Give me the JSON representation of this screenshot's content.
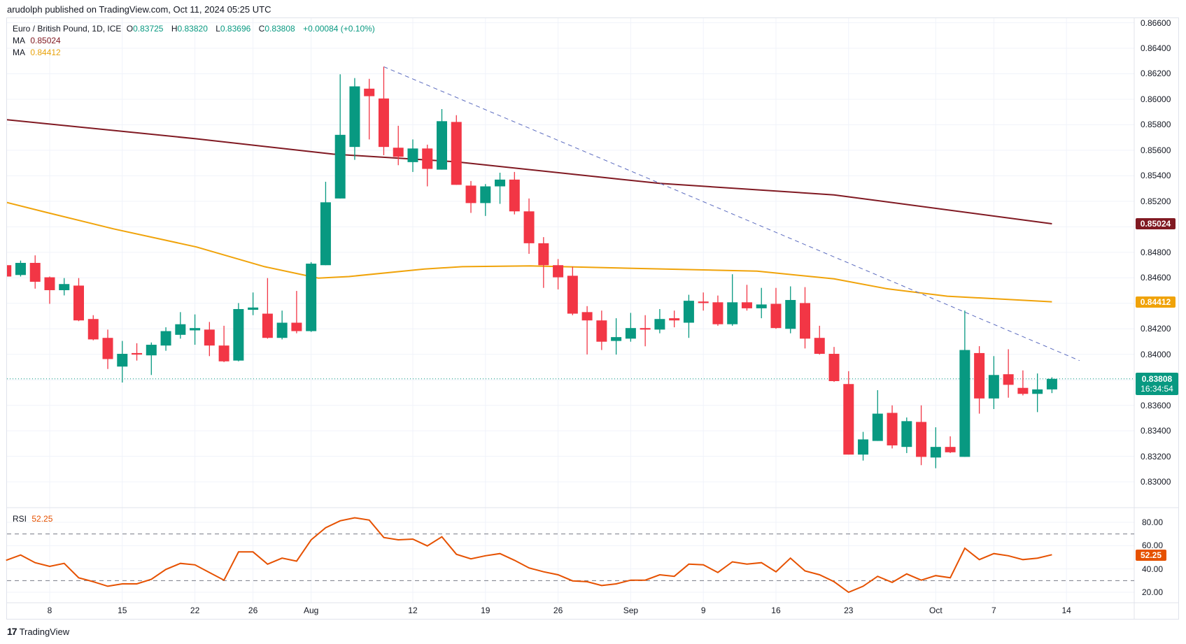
{
  "header": {
    "published": "arudolph published on TradingView.com, Oct 11, 2024 05:25 UTC"
  },
  "legend": {
    "symbol": "Euro / British Pound, 1D, ICE",
    "o_label": "O",
    "o": "0.83725",
    "h_label": "H",
    "h": "0.83820",
    "l_label": "L",
    "l": "0.83696",
    "c_label": "C",
    "c": "0.83808",
    "change": "+0.00084 (+0.10%)",
    "ma1_label": "MA",
    "ma1_value": "0.85024",
    "ma2_label": "MA",
    "ma2_value": "0.84412",
    "rsi_label": "RSI",
    "rsi_value": "52.25"
  },
  "tags": {
    "ma1": "0.85024",
    "ma2": "0.84412",
    "last_price": "0.83808",
    "countdown": "16:34:54",
    "rsi": "52.25"
  },
  "footer": {
    "brand": "TradingView",
    "logo": "17"
  },
  "colors": {
    "up": "#089981",
    "down": "#f23645",
    "ma1": "#801922",
    "ma2": "#f0a30a",
    "rsi": "#e65100",
    "trendline": "#5b6bbf"
  },
  "chart_data": {
    "type": "candlestick",
    "title": "Euro / British Pound, 1D, ICE",
    "price_ylim": [
      0.8286,
      0.8668
    ],
    "price_ticks": [
      "0.86600",
      "0.86400",
      "0.86200",
      "0.86000",
      "0.85800",
      "0.85600",
      "0.85400",
      "0.85200",
      "0.85000",
      "0.84800",
      "0.84600",
      "0.84400",
      "0.84200",
      "0.84000",
      "0.83800",
      "0.83600",
      "0.83400",
      "0.83200",
      "0.83000"
    ],
    "shown_price_ticks": [
      "0.86600",
      "0.86400",
      "0.86200",
      "0.86000",
      "0.85800",
      "0.85600",
      "0.85400",
      "0.85200",
      "0.84800",
      "0.84600",
      "0.84200",
      "0.84000",
      "0.83600",
      "0.83400",
      "0.83200",
      "0.83000"
    ],
    "rsi_ticks": [
      "80.00",
      "60.00",
      "40.00",
      "20.00"
    ],
    "rsi_levels": [
      70,
      30
    ],
    "x_labels": [
      {
        "label": "8",
        "index": 3
      },
      {
        "label": "15",
        "index": 8
      },
      {
        "label": "22",
        "index": 13
      },
      {
        "label": "26",
        "index": 17
      },
      {
        "label": "Aug",
        "index": 21
      },
      {
        "label": "12",
        "index": 28
      },
      {
        "label": "19",
        "index": 33
      },
      {
        "label": "26",
        "index": 38
      },
      {
        "label": "Sep",
        "index": 43
      },
      {
        "label": "9",
        "index": 48
      },
      {
        "label": "16",
        "index": 53
      },
      {
        "label": "23",
        "index": 58
      },
      {
        "label": "Oct",
        "index": 64
      },
      {
        "label": "7",
        "index": 68
      },
      {
        "label": "14",
        "index": 73
      }
    ],
    "ohlc": [
      [
        0.84699,
        0.8472,
        0.846,
        0.8461
      ],
      [
        0.84622,
        0.84735,
        0.8461,
        0.84717
      ],
      [
        0.84717,
        0.84776,
        0.84515,
        0.84569
      ],
      [
        0.84604,
        0.8461,
        0.84396,
        0.84503
      ],
      [
        0.84503,
        0.84598,
        0.84462,
        0.84551
      ],
      [
        0.84539,
        0.84598,
        0.8426,
        0.84266
      ],
      [
        0.84277,
        0.84307,
        0.8411,
        0.84117
      ],
      [
        0.84129,
        0.84194,
        0.83885,
        0.83963
      ],
      [
        0.83904,
        0.84105,
        0.83779,
        0.84004
      ],
      [
        0.8401,
        0.84087,
        0.83951,
        0.83998
      ],
      [
        0.83992,
        0.84093,
        0.83838,
        0.84075
      ],
      [
        0.84069,
        0.84212,
        0.84028,
        0.84182
      ],
      [
        0.84153,
        0.84331,
        0.84123,
        0.84236
      ],
      [
        0.84188,
        0.84313,
        0.84075,
        0.84206
      ],
      [
        0.84194,
        0.84254,
        0.83986,
        0.84069
      ],
      [
        0.84069,
        0.84224,
        0.83939,
        0.83945
      ],
      [
        0.83951,
        0.84402,
        0.83945,
        0.84355
      ],
      [
        0.84349,
        0.84485,
        0.84307,
        0.84367
      ],
      [
        0.84319,
        0.84598,
        0.84123,
        0.84129
      ],
      [
        0.84129,
        0.84343,
        0.84117,
        0.84248
      ],
      [
        0.84248,
        0.84497,
        0.84165,
        0.84182
      ],
      [
        0.84182,
        0.84723,
        0.84176,
        0.84711
      ],
      [
        0.84699,
        0.85353,
        0.84699,
        0.85192
      ],
      [
        0.85222,
        0.86196,
        0.85222,
        0.85721
      ],
      [
        0.85626,
        0.86166,
        0.85525,
        0.86101
      ],
      [
        0.86083,
        0.8616,
        0.85685,
        0.86024
      ],
      [
        0.86006,
        0.86255,
        0.85561,
        0.85626
      ],
      [
        0.8562,
        0.85792,
        0.85483,
        0.85549
      ],
      [
        0.85507,
        0.85685,
        0.8543,
        0.85614
      ],
      [
        0.85614,
        0.85644,
        0.85317,
        0.85454
      ],
      [
        0.85448,
        0.85923,
        0.85448,
        0.85828
      ],
      [
        0.85822,
        0.85875,
        0.85329,
        0.85329
      ],
      [
        0.85323,
        0.85359,
        0.85109,
        0.85186
      ],
      [
        0.85186,
        0.85335,
        0.85085,
        0.85317
      ],
      [
        0.85317,
        0.85424,
        0.8518,
        0.8537
      ],
      [
        0.8537,
        0.8543,
        0.85097,
        0.85121
      ],
      [
        0.85121,
        0.85222,
        0.84788,
        0.84871
      ],
      [
        0.84871,
        0.84919,
        0.84521,
        0.84699
      ],
      [
        0.84699,
        0.84747,
        0.84509,
        0.84604
      ],
      [
        0.84616,
        0.84687,
        0.84307,
        0.84319
      ],
      [
        0.84331,
        0.84378,
        0.83999,
        0.84266
      ],
      [
        0.84266,
        0.84343,
        0.84034,
        0.84099
      ],
      [
        0.84105,
        0.84283,
        0.83998,
        0.84135
      ],
      [
        0.84123,
        0.84325,
        0.84099,
        0.84206
      ],
      [
        0.84206,
        0.84307,
        0.84063,
        0.84194
      ],
      [
        0.84194,
        0.84355,
        0.84165,
        0.84277
      ],
      [
        0.84283,
        0.84343,
        0.84212,
        0.84266
      ],
      [
        0.84248,
        0.84467,
        0.84129,
        0.8442
      ],
      [
        0.84414,
        0.84485,
        0.84343,
        0.84402
      ],
      [
        0.84408,
        0.84461,
        0.84224,
        0.84236
      ],
      [
        0.84236,
        0.84628,
        0.84224,
        0.84408
      ],
      [
        0.84408,
        0.84545,
        0.84343,
        0.84361
      ],
      [
        0.84361,
        0.84521,
        0.84283,
        0.84391
      ],
      [
        0.84396,
        0.84521,
        0.842,
        0.84206
      ],
      [
        0.842,
        0.84533,
        0.84165,
        0.84426
      ],
      [
        0.84402,
        0.84527,
        0.84046,
        0.84123
      ],
      [
        0.84129,
        0.84224,
        0.83998,
        0.84004
      ],
      [
        0.84004,
        0.84058,
        0.83784,
        0.8379
      ],
      [
        0.83767,
        0.83868,
        0.83214,
        0.83214
      ],
      [
        0.83214,
        0.83392,
        0.83167,
        0.83333
      ],
      [
        0.83321,
        0.83719,
        0.83321,
        0.83535
      ],
      [
        0.83541,
        0.836,
        0.83262,
        0.83286
      ],
      [
        0.83274,
        0.83505,
        0.83226,
        0.83476
      ],
      [
        0.8347,
        0.836,
        0.83131,
        0.83196
      ],
      [
        0.83191,
        0.83428,
        0.83107,
        0.83274
      ],
      [
        0.83274,
        0.83357,
        0.83226,
        0.83232
      ],
      [
        0.83196,
        0.84343,
        0.83196,
        0.84034
      ],
      [
        0.8401,
        0.84064,
        0.83535,
        0.83654
      ],
      [
        0.83654,
        0.83986,
        0.83571,
        0.83838
      ],
      [
        0.83844,
        0.8404,
        0.8366,
        0.83761
      ],
      [
        0.83737,
        0.83874,
        0.83678,
        0.8369
      ],
      [
        0.8369,
        0.8385,
        0.83547,
        0.83725
      ],
      [
        0.83725,
        0.8382,
        0.83696,
        0.83808
      ]
    ],
    "ma_slow": [
      [
        0,
        0.8584
      ],
      [
        13.1,
        0.8569
      ],
      [
        22.5,
        0.8557
      ],
      [
        30.9,
        0.8551
      ],
      [
        45,
        0.8534
      ],
      [
        57,
        0.8525
      ],
      [
        72,
        0.85024
      ]
    ],
    "ma_fast": [
      [
        0,
        0.85192
      ],
      [
        2.7,
        0.85115
      ],
      [
        7.4,
        0.84984
      ],
      [
        13.1,
        0.84842
      ],
      [
        17.8,
        0.84687
      ],
      [
        21.5,
        0.84598
      ],
      [
        23.6,
        0.8461
      ],
      [
        28.8,
        0.84669
      ],
      [
        31.4,
        0.84687
      ],
      [
        36.1,
        0.84693
      ],
      [
        42.9,
        0.84675
      ],
      [
        51.7,
        0.84652
      ],
      [
        57,
        0.84592
      ],
      [
        60.6,
        0.84515
      ],
      [
        64.8,
        0.84456
      ],
      [
        72,
        0.84412
      ]
    ],
    "trendline": [
      [
        26,
        0.86255
      ],
      [
        73.9,
        0.83951
      ]
    ],
    "last_price": 0.83808,
    "rsi": [
      47.4,
      52,
      45.4,
      42.2,
      44.8,
      32.4,
      29.1,
      25.2,
      27.2,
      27.2,
      31.1,
      39.6,
      44.8,
      43.5,
      37,
      30.4,
      54.6,
      54.6,
      44.1,
      49.3,
      46.7,
      65,
      75.4,
      81.3,
      83.9,
      81.9,
      67,
      65,
      65.6,
      59.8,
      67.6,
      52.6,
      48.7,
      51.3,
      53.2,
      47.4,
      40.9,
      37.6,
      35,
      29.8,
      29.1,
      25.8,
      27.2,
      30.4,
      30.4,
      35,
      33.7,
      44.1,
      43.5,
      37,
      46.1,
      44.1,
      45.4,
      37.6,
      49.3,
      38.3,
      35,
      29.1,
      20,
      25.2,
      33.7,
      28.5,
      35.7,
      30.4,
      34.3,
      32.4,
      57.8,
      48,
      53.2,
      51.3,
      48,
      49.3,
      52.25
    ],
    "rsi_ylim": [
      20,
      80
    ]
  }
}
